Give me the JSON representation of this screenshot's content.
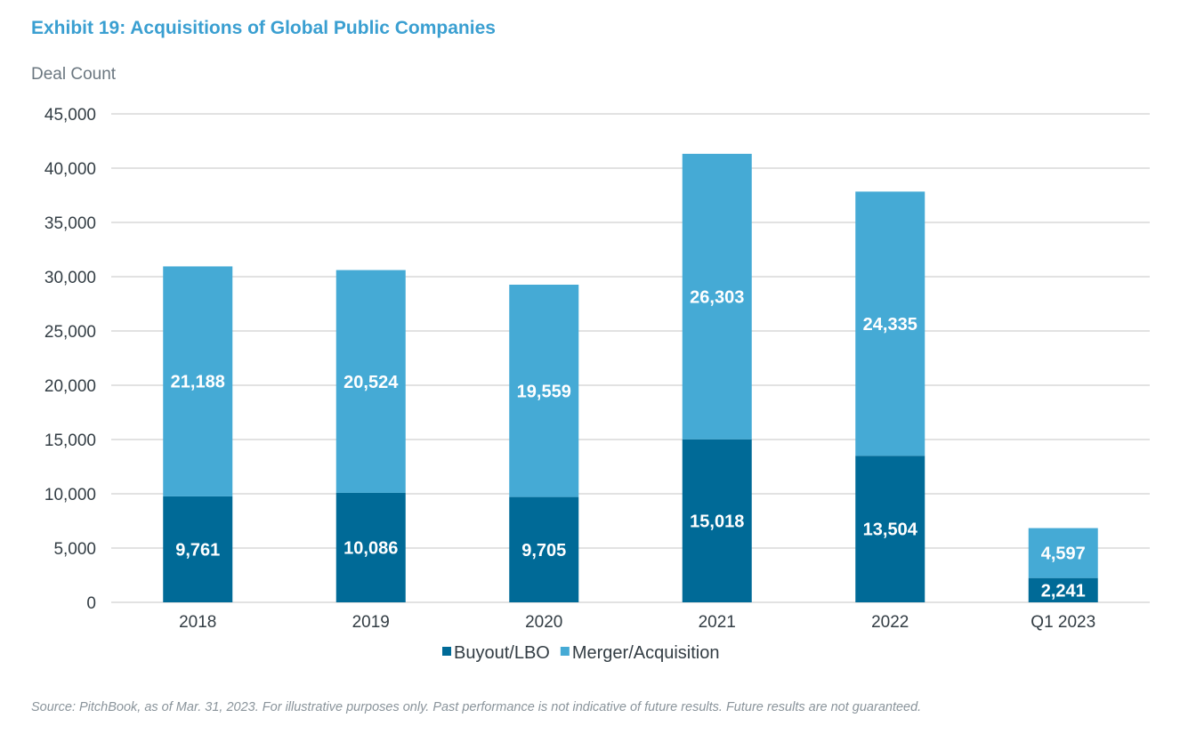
{
  "chart_data": {
    "type": "bar",
    "stacked": true,
    "title": "Exhibit 19: Acquisitions of Global Public Companies",
    "ylabel": "Deal Count",
    "xlabel": "",
    "categories": [
      "2018",
      "2019",
      "2020",
      "2021",
      "2022",
      "Q1 2023"
    ],
    "series": [
      {
        "name": "Buyout/LBO",
        "color": "#006a97",
        "values": [
          9761,
          10086,
          9705,
          15018,
          13504,
          2241
        ],
        "labels": [
          "9,761",
          "10,086",
          "9,705",
          "15,018",
          "13,504",
          "2,241"
        ]
      },
      {
        "name": "Merger/Acquisition",
        "color": "#45aad5",
        "values": [
          21188,
          20524,
          19559,
          26303,
          24335,
          4597
        ],
        "labels": [
          "21,188",
          "20,524",
          "19,559",
          "26,303",
          "24,335",
          "4,597"
        ]
      }
    ],
    "ylim": [
      0,
      45000
    ],
    "yticks": [
      0,
      5000,
      10000,
      15000,
      20000,
      25000,
      30000,
      35000,
      40000,
      45000
    ],
    "ytick_labels": [
      "0",
      "5,000",
      "10,000",
      "15,000",
      "20,000",
      "25,000",
      "30,000",
      "35,000",
      "40,000",
      "45,000"
    ],
    "grid": true,
    "gridline_color": "#d9d9d9",
    "legend_placement": "bottom",
    "source": "Source: PitchBook, as of Mar. 31, 2023. For illustrative purposes only. Past performance is not indicative of future results. Future results are not guaranteed."
  }
}
